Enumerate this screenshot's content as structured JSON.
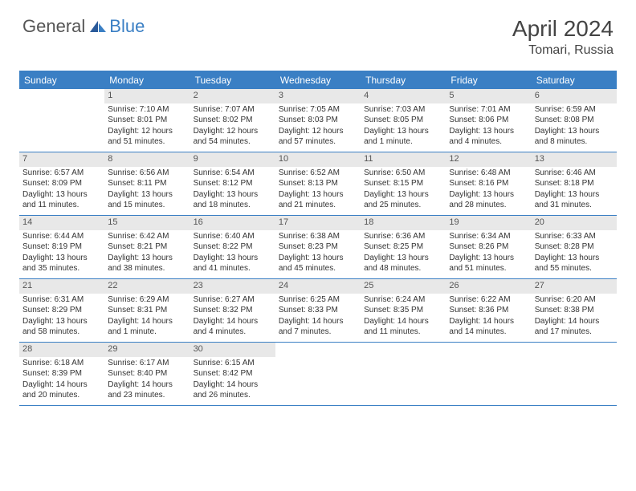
{
  "logo": {
    "text1": "General",
    "text2": "Blue"
  },
  "title": "April 2024",
  "location": "Tomari, Russia",
  "colors": {
    "header_bg": "#3a7fc4",
    "header_text": "#ffffff",
    "date_bg": "#e8e8e8",
    "border": "#3a7fc4",
    "body_text": "#333333",
    "title_text": "#444444"
  },
  "typography": {
    "title_fontsize": 28,
    "location_fontsize": 16,
    "header_fontsize": 12,
    "cell_fontsize": 10
  },
  "day_names": [
    "Sunday",
    "Monday",
    "Tuesday",
    "Wednesday",
    "Thursday",
    "Friday",
    "Saturday"
  ],
  "weeks": [
    [
      {
        "blank": true
      },
      {
        "date": "1",
        "sunrise": "Sunrise: 7:10 AM",
        "sunset": "Sunset: 8:01 PM",
        "day1": "Daylight: 12 hours",
        "day2": "and 51 minutes."
      },
      {
        "date": "2",
        "sunrise": "Sunrise: 7:07 AM",
        "sunset": "Sunset: 8:02 PM",
        "day1": "Daylight: 12 hours",
        "day2": "and 54 minutes."
      },
      {
        "date": "3",
        "sunrise": "Sunrise: 7:05 AM",
        "sunset": "Sunset: 8:03 PM",
        "day1": "Daylight: 12 hours",
        "day2": "and 57 minutes."
      },
      {
        "date": "4",
        "sunrise": "Sunrise: 7:03 AM",
        "sunset": "Sunset: 8:05 PM",
        "day1": "Daylight: 13 hours",
        "day2": "and 1 minute."
      },
      {
        "date": "5",
        "sunrise": "Sunrise: 7:01 AM",
        "sunset": "Sunset: 8:06 PM",
        "day1": "Daylight: 13 hours",
        "day2": "and 4 minutes."
      },
      {
        "date": "6",
        "sunrise": "Sunrise: 6:59 AM",
        "sunset": "Sunset: 8:08 PM",
        "day1": "Daylight: 13 hours",
        "day2": "and 8 minutes."
      }
    ],
    [
      {
        "date": "7",
        "sunrise": "Sunrise: 6:57 AM",
        "sunset": "Sunset: 8:09 PM",
        "day1": "Daylight: 13 hours",
        "day2": "and 11 minutes."
      },
      {
        "date": "8",
        "sunrise": "Sunrise: 6:56 AM",
        "sunset": "Sunset: 8:11 PM",
        "day1": "Daylight: 13 hours",
        "day2": "and 15 minutes."
      },
      {
        "date": "9",
        "sunrise": "Sunrise: 6:54 AM",
        "sunset": "Sunset: 8:12 PM",
        "day1": "Daylight: 13 hours",
        "day2": "and 18 minutes."
      },
      {
        "date": "10",
        "sunrise": "Sunrise: 6:52 AM",
        "sunset": "Sunset: 8:13 PM",
        "day1": "Daylight: 13 hours",
        "day2": "and 21 minutes."
      },
      {
        "date": "11",
        "sunrise": "Sunrise: 6:50 AM",
        "sunset": "Sunset: 8:15 PM",
        "day1": "Daylight: 13 hours",
        "day2": "and 25 minutes."
      },
      {
        "date": "12",
        "sunrise": "Sunrise: 6:48 AM",
        "sunset": "Sunset: 8:16 PM",
        "day1": "Daylight: 13 hours",
        "day2": "and 28 minutes."
      },
      {
        "date": "13",
        "sunrise": "Sunrise: 6:46 AM",
        "sunset": "Sunset: 8:18 PM",
        "day1": "Daylight: 13 hours",
        "day2": "and 31 minutes."
      }
    ],
    [
      {
        "date": "14",
        "sunrise": "Sunrise: 6:44 AM",
        "sunset": "Sunset: 8:19 PM",
        "day1": "Daylight: 13 hours",
        "day2": "and 35 minutes."
      },
      {
        "date": "15",
        "sunrise": "Sunrise: 6:42 AM",
        "sunset": "Sunset: 8:21 PM",
        "day1": "Daylight: 13 hours",
        "day2": "and 38 minutes."
      },
      {
        "date": "16",
        "sunrise": "Sunrise: 6:40 AM",
        "sunset": "Sunset: 8:22 PM",
        "day1": "Daylight: 13 hours",
        "day2": "and 41 minutes."
      },
      {
        "date": "17",
        "sunrise": "Sunrise: 6:38 AM",
        "sunset": "Sunset: 8:23 PM",
        "day1": "Daylight: 13 hours",
        "day2": "and 45 minutes."
      },
      {
        "date": "18",
        "sunrise": "Sunrise: 6:36 AM",
        "sunset": "Sunset: 8:25 PM",
        "day1": "Daylight: 13 hours",
        "day2": "and 48 minutes."
      },
      {
        "date": "19",
        "sunrise": "Sunrise: 6:34 AM",
        "sunset": "Sunset: 8:26 PM",
        "day1": "Daylight: 13 hours",
        "day2": "and 51 minutes."
      },
      {
        "date": "20",
        "sunrise": "Sunrise: 6:33 AM",
        "sunset": "Sunset: 8:28 PM",
        "day1": "Daylight: 13 hours",
        "day2": "and 55 minutes."
      }
    ],
    [
      {
        "date": "21",
        "sunrise": "Sunrise: 6:31 AM",
        "sunset": "Sunset: 8:29 PM",
        "day1": "Daylight: 13 hours",
        "day2": "and 58 minutes."
      },
      {
        "date": "22",
        "sunrise": "Sunrise: 6:29 AM",
        "sunset": "Sunset: 8:31 PM",
        "day1": "Daylight: 14 hours",
        "day2": "and 1 minute."
      },
      {
        "date": "23",
        "sunrise": "Sunrise: 6:27 AM",
        "sunset": "Sunset: 8:32 PM",
        "day1": "Daylight: 14 hours",
        "day2": "and 4 minutes."
      },
      {
        "date": "24",
        "sunrise": "Sunrise: 6:25 AM",
        "sunset": "Sunset: 8:33 PM",
        "day1": "Daylight: 14 hours",
        "day2": "and 7 minutes."
      },
      {
        "date": "25",
        "sunrise": "Sunrise: 6:24 AM",
        "sunset": "Sunset: 8:35 PM",
        "day1": "Daylight: 14 hours",
        "day2": "and 11 minutes."
      },
      {
        "date": "26",
        "sunrise": "Sunrise: 6:22 AM",
        "sunset": "Sunset: 8:36 PM",
        "day1": "Daylight: 14 hours",
        "day2": "and 14 minutes."
      },
      {
        "date": "27",
        "sunrise": "Sunrise: 6:20 AM",
        "sunset": "Sunset: 8:38 PM",
        "day1": "Daylight: 14 hours",
        "day2": "and 17 minutes."
      }
    ],
    [
      {
        "date": "28",
        "sunrise": "Sunrise: 6:18 AM",
        "sunset": "Sunset: 8:39 PM",
        "day1": "Daylight: 14 hours",
        "day2": "and 20 minutes."
      },
      {
        "date": "29",
        "sunrise": "Sunrise: 6:17 AM",
        "sunset": "Sunset: 8:40 PM",
        "day1": "Daylight: 14 hours",
        "day2": "and 23 minutes."
      },
      {
        "date": "30",
        "sunrise": "Sunrise: 6:15 AM",
        "sunset": "Sunset: 8:42 PM",
        "day1": "Daylight: 14 hours",
        "day2": "and 26 minutes."
      },
      {
        "blank": true
      },
      {
        "blank": true
      },
      {
        "blank": true
      },
      {
        "blank": true
      }
    ]
  ]
}
